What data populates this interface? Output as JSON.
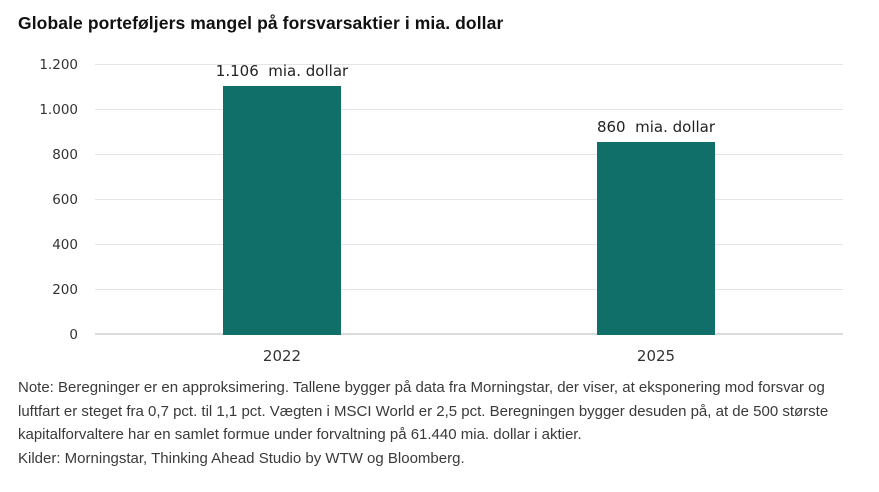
{
  "chart_data": {
    "type": "bar",
    "title": "Globale porteføljers mangel på forsvarsaktier i mia. dollar",
    "categories": [
      "2022",
      "2025"
    ],
    "values": [
      1106,
      860
    ],
    "value_labels": [
      "1.106  mia. dollar",
      "860  mia. dollar"
    ],
    "unit": "mia. dollar",
    "xlabel": "",
    "ylabel": "",
    "ylim": [
      0,
      1200
    ],
    "yticks": {
      "values": [
        0,
        200,
        400,
        600,
        800,
        1000,
        1200
      ],
      "labels": [
        "0",
        "200",
        "400",
        "600",
        "800",
        "1.000",
        "1.200"
      ]
    },
    "grid": "horizontal",
    "legend": "none",
    "bar_color": "#107069"
  },
  "note": {
    "lines": [
      "Note: Beregninger er en approksimering. Tallene bygger på data fra Morningstar, der viser, at eksponering mod forsvar og",
      "luftfart er steget fra 0,7 pct. til 1,1 pct. Vægten i MSCI World er 2,5 pct. Beregningen bygger desuden på, at de 500 største",
      "kapitalforvaltere har en samlet formue under forvaltning på 61.440 mia. dollar i aktier.",
      "Kilder: Morningstar, Thinking Ahead Studio by WTW og Bloomberg."
    ]
  },
  "colors": {
    "bar": "#107069",
    "gridline": "#e4e4e4",
    "axis_line": "#dbdbdb",
    "tick_text": "#333333",
    "note_text": "#3a3a3a"
  }
}
